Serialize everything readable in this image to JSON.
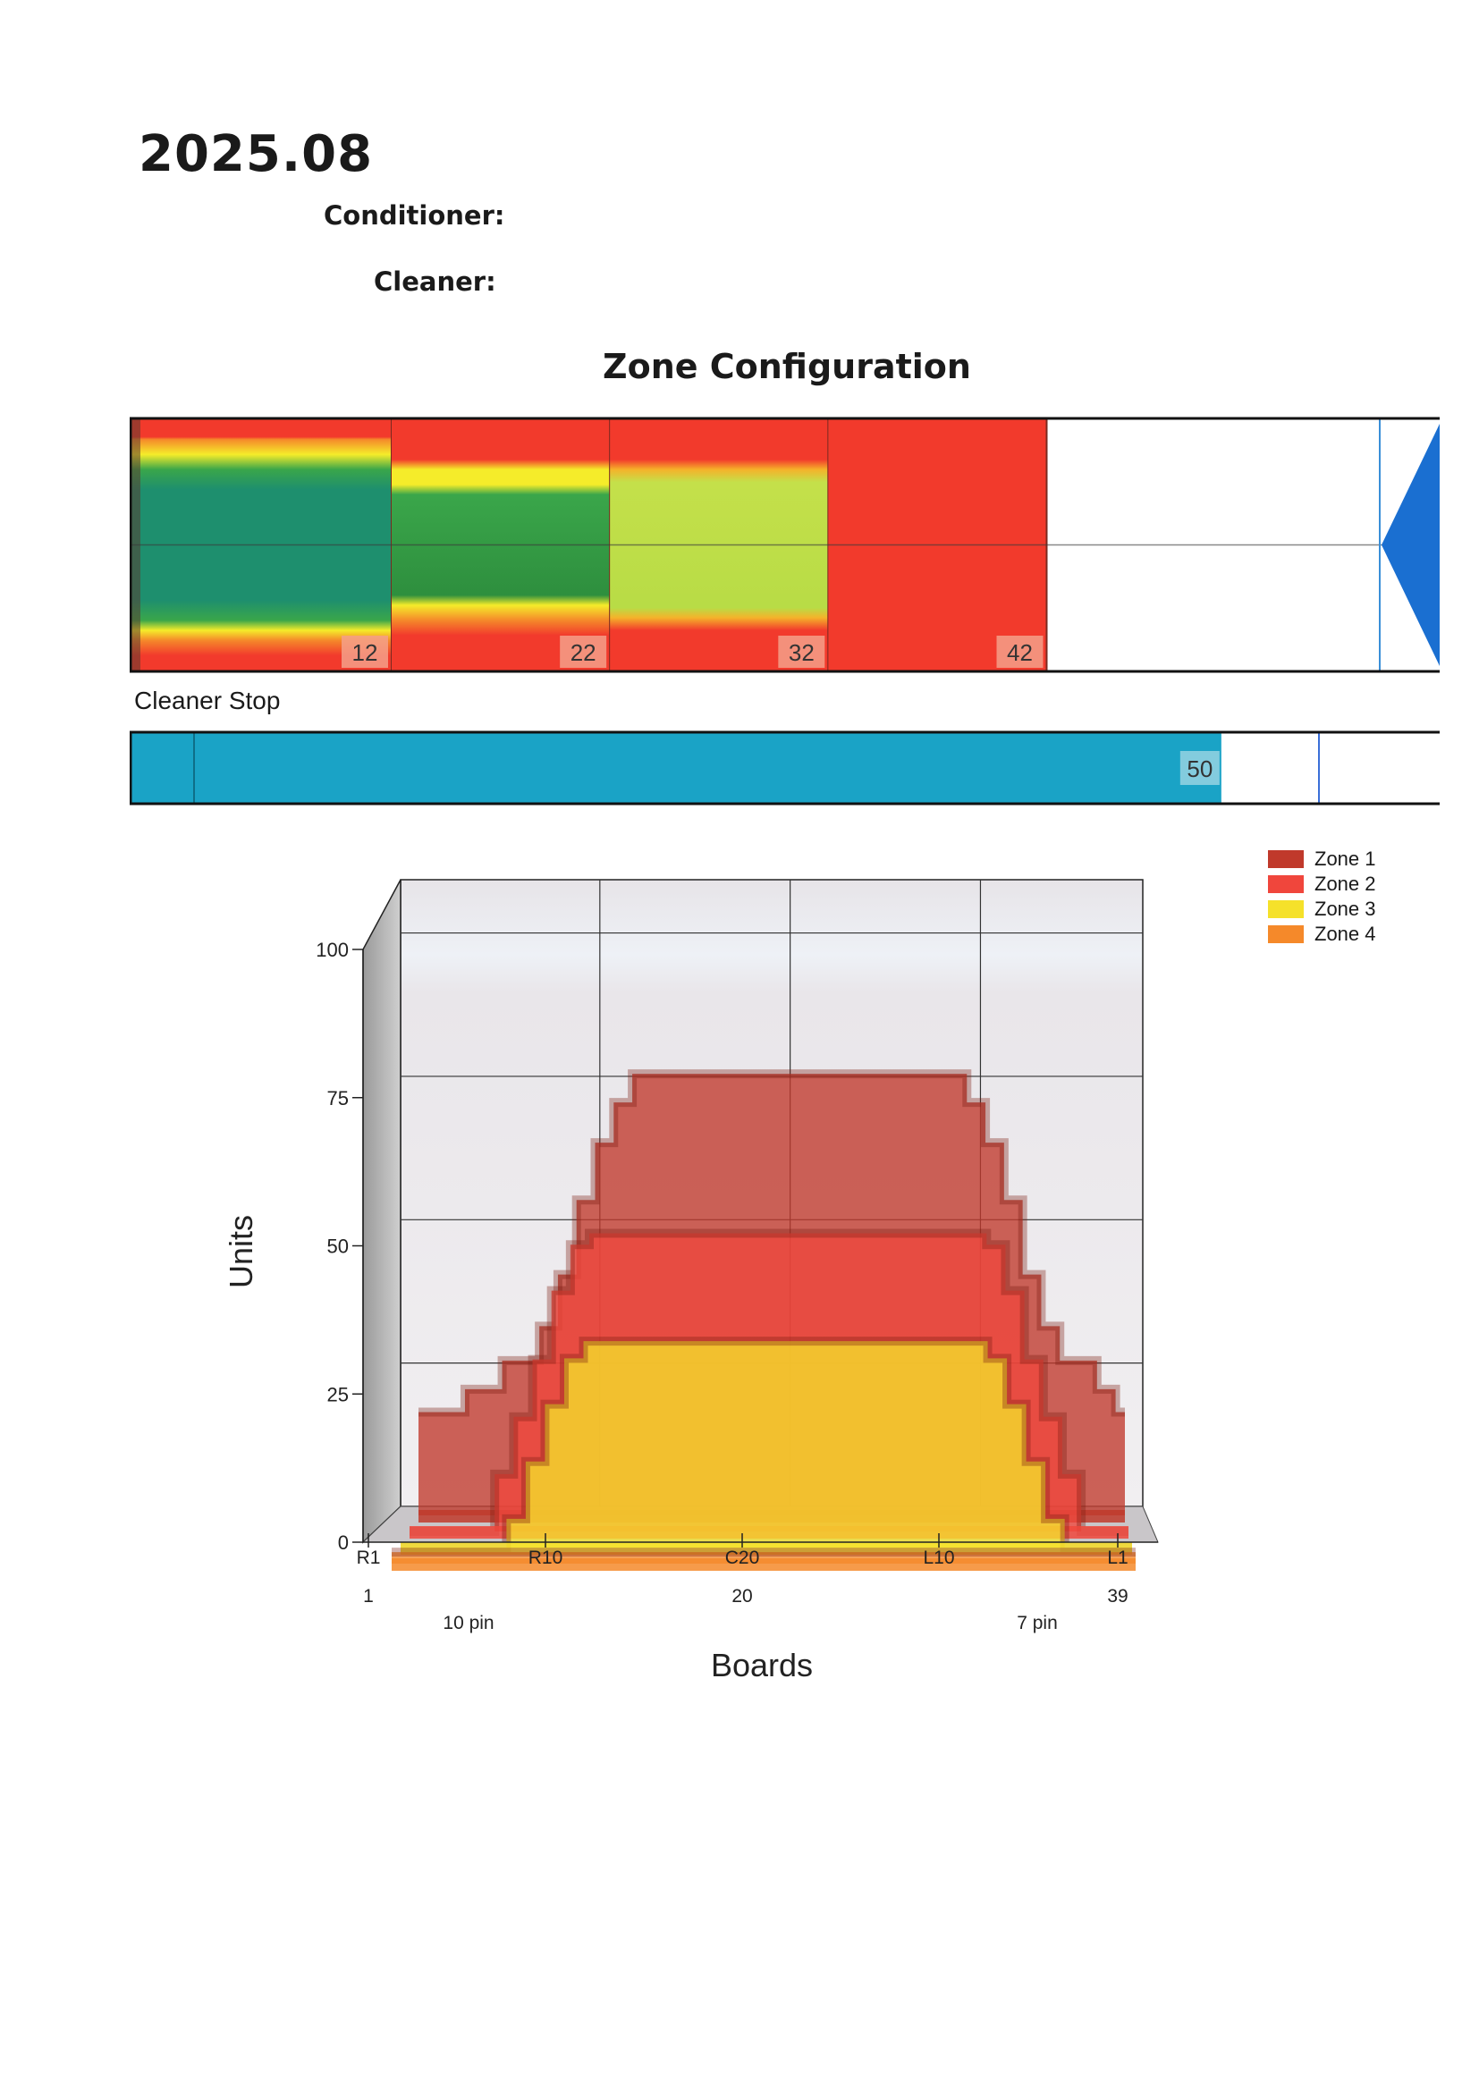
{
  "document": {
    "title": "2025.08",
    "conditioner_label": "Conditioner:",
    "cleaner_label": "Cleaner:",
    "section_title": "Zone Configuration"
  },
  "zone_strip": {
    "total_boards": 60,
    "zone_ends": [
      "12",
      "22",
      "32",
      "42"
    ],
    "colors": {
      "red": "#f23a2c",
      "dark_green": "#1e8f5e",
      "green": "#2e9648",
      "lime": "#b6dc46",
      "yellow": "#f5ec2a",
      "orange": "#f5892a",
      "blue": "#1a6fd1"
    }
  },
  "cleaner_stop": {
    "label": "Cleaner Stop",
    "value": "50",
    "total": 60,
    "color": "#1aa3c6"
  },
  "chart_data": {
    "type": "area",
    "view": "3d",
    "x_tick_labels": [
      "R1",
      "R10",
      "C20",
      "L10",
      "L1"
    ],
    "x_numbers": [
      "1",
      "20",
      "39"
    ],
    "x_subtitles": [
      "10 pin",
      "7 pin"
    ],
    "xlabel": "Boards",
    "ylabel": "Units",
    "ylim": [
      0,
      100
    ],
    "yticks": [
      "0",
      "25",
      "50",
      "75",
      "100"
    ],
    "x": [
      1,
      2,
      3,
      4,
      5,
      6,
      7,
      8,
      9,
      10,
      11,
      12,
      13,
      14,
      15,
      16,
      17,
      18,
      19,
      20,
      21,
      22,
      23,
      24,
      25,
      26,
      27,
      28,
      29,
      30,
      31,
      32,
      33,
      34,
      35,
      36,
      37,
      38,
      39
    ],
    "series": [
      {
        "name": "Zone 1",
        "color": "#c0392b",
        "values": [
          18,
          18,
          18,
          22,
          22,
          27,
          27,
          33,
          42,
          55,
          65,
          72,
          77,
          77,
          77,
          77,
          77,
          77,
          77,
          77,
          77,
          77,
          77,
          77,
          77,
          77,
          77,
          77,
          77,
          77,
          72,
          65,
          55,
          42,
          33,
          27,
          27,
          22,
          18
        ]
      },
      {
        "name": "Zone 2",
        "color": "#f0463c",
        "values": [
          0,
          0,
          0,
          0,
          0,
          10,
          20,
          30,
          42,
          50,
          52,
          52,
          52,
          52,
          52,
          52,
          52,
          52,
          52,
          52,
          52,
          52,
          52,
          52,
          52,
          52,
          52,
          52,
          52,
          52,
          52,
          50,
          42,
          30,
          20,
          10,
          0,
          0,
          0
        ]
      },
      {
        "name": "Zone 3",
        "color": "#f5e12a",
        "values": [
          0,
          0,
          0,
          0,
          0,
          0,
          5,
          15,
          25,
          33,
          36,
          36,
          36,
          36,
          36,
          36,
          36,
          36,
          36,
          36,
          36,
          36,
          36,
          36,
          36,
          36,
          36,
          36,
          36,
          36,
          36,
          33,
          25,
          15,
          5,
          0,
          0,
          0,
          0
        ]
      },
      {
        "name": "Zone 4",
        "color": "#f5892a",
        "values": [
          2,
          2,
          2,
          2,
          2,
          2,
          2,
          2,
          2,
          2,
          2,
          2,
          2,
          2,
          2,
          2,
          2,
          2,
          2,
          2,
          2,
          2,
          2,
          2,
          2,
          2,
          2,
          2,
          2,
          2,
          2,
          2,
          2,
          2,
          2,
          2,
          2,
          2,
          2
        ]
      }
    ],
    "legend": [
      "Zone 1",
      "Zone 2",
      "Zone 3",
      "Zone 4"
    ],
    "legend_position": "top-right",
    "grid": true
  }
}
